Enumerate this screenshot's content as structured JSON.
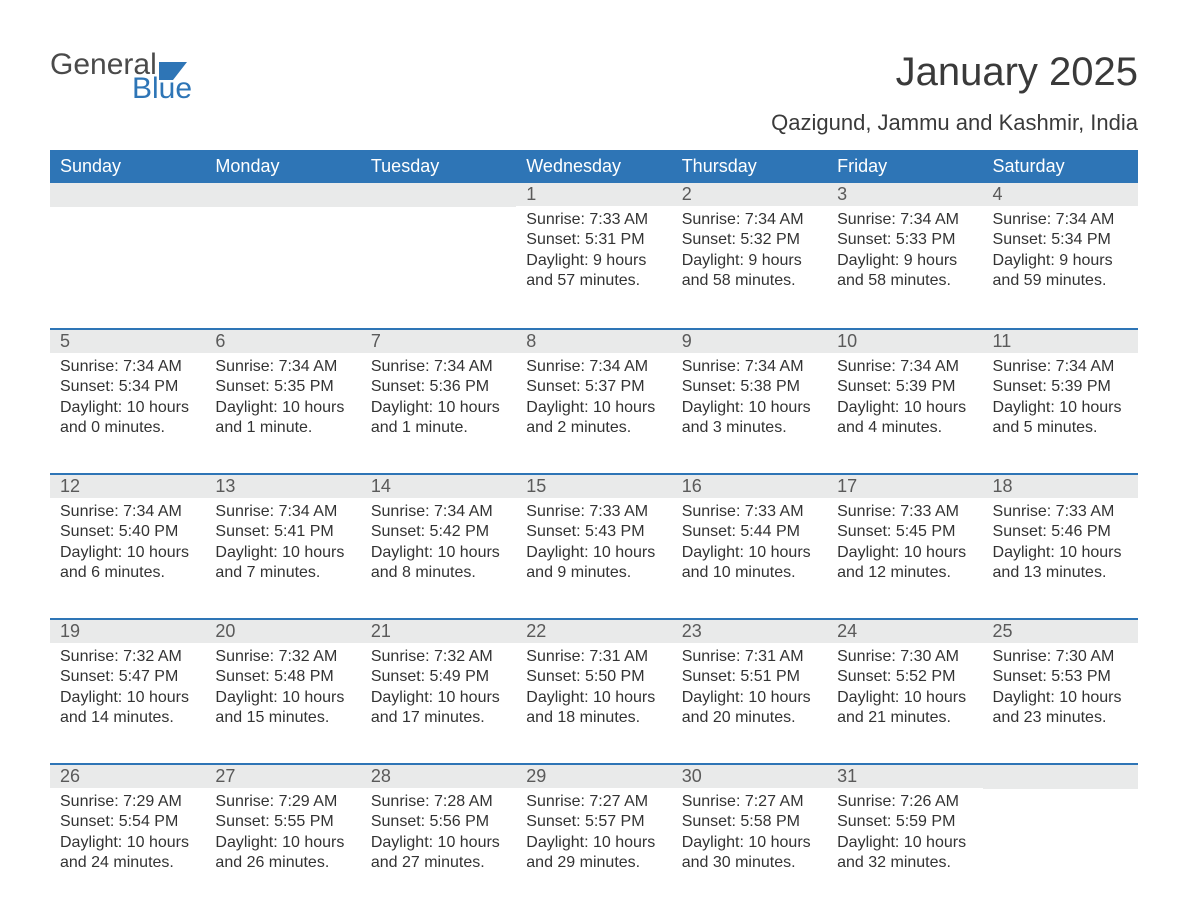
{
  "brand": {
    "word1": "General",
    "word2": "Blue"
  },
  "title": "January 2025",
  "subtitle": "Qazigund, Jammu and Kashmir, India",
  "colors": {
    "header_bg": "#2e75b6",
    "header_text": "#ffffff",
    "daynum_bg": "#e9eaea",
    "daynum_text": "#5a5a5a",
    "body_text": "#333333",
    "page_bg": "#ffffff",
    "logo_gray": "#4a4a4a",
    "logo_blue": "#2e75b6"
  },
  "typography": {
    "title_fontsize": 40,
    "subtitle_fontsize": 22,
    "header_fontsize": 18,
    "daynum_fontsize": 18,
    "body_fontsize": 16
  },
  "dayNames": [
    "Sunday",
    "Monday",
    "Tuesday",
    "Wednesday",
    "Thursday",
    "Friday",
    "Saturday"
  ],
  "weeks": [
    [
      {
        "num": "",
        "sunrise": "",
        "sunset": "",
        "daylight": ""
      },
      {
        "num": "",
        "sunrise": "",
        "sunset": "",
        "daylight": ""
      },
      {
        "num": "",
        "sunrise": "",
        "sunset": "",
        "daylight": ""
      },
      {
        "num": "1",
        "sunrise": "Sunrise: 7:33 AM",
        "sunset": "Sunset: 5:31 PM",
        "daylight": "Daylight: 9 hours and 57 minutes."
      },
      {
        "num": "2",
        "sunrise": "Sunrise: 7:34 AM",
        "sunset": "Sunset: 5:32 PM",
        "daylight": "Daylight: 9 hours and 58 minutes."
      },
      {
        "num": "3",
        "sunrise": "Sunrise: 7:34 AM",
        "sunset": "Sunset: 5:33 PM",
        "daylight": "Daylight: 9 hours and 58 minutes."
      },
      {
        "num": "4",
        "sunrise": "Sunrise: 7:34 AM",
        "sunset": "Sunset: 5:34 PM",
        "daylight": "Daylight: 9 hours and 59 minutes."
      }
    ],
    [
      {
        "num": "5",
        "sunrise": "Sunrise: 7:34 AM",
        "sunset": "Sunset: 5:34 PM",
        "daylight": "Daylight: 10 hours and 0 minutes."
      },
      {
        "num": "6",
        "sunrise": "Sunrise: 7:34 AM",
        "sunset": "Sunset: 5:35 PM",
        "daylight": "Daylight: 10 hours and 1 minute."
      },
      {
        "num": "7",
        "sunrise": "Sunrise: 7:34 AM",
        "sunset": "Sunset: 5:36 PM",
        "daylight": "Daylight: 10 hours and 1 minute."
      },
      {
        "num": "8",
        "sunrise": "Sunrise: 7:34 AM",
        "sunset": "Sunset: 5:37 PM",
        "daylight": "Daylight: 10 hours and 2 minutes."
      },
      {
        "num": "9",
        "sunrise": "Sunrise: 7:34 AM",
        "sunset": "Sunset: 5:38 PM",
        "daylight": "Daylight: 10 hours and 3 minutes."
      },
      {
        "num": "10",
        "sunrise": "Sunrise: 7:34 AM",
        "sunset": "Sunset: 5:39 PM",
        "daylight": "Daylight: 10 hours and 4 minutes."
      },
      {
        "num": "11",
        "sunrise": "Sunrise: 7:34 AM",
        "sunset": "Sunset: 5:39 PM",
        "daylight": "Daylight: 10 hours and 5 minutes."
      }
    ],
    [
      {
        "num": "12",
        "sunrise": "Sunrise: 7:34 AM",
        "sunset": "Sunset: 5:40 PM",
        "daylight": "Daylight: 10 hours and 6 minutes."
      },
      {
        "num": "13",
        "sunrise": "Sunrise: 7:34 AM",
        "sunset": "Sunset: 5:41 PM",
        "daylight": "Daylight: 10 hours and 7 minutes."
      },
      {
        "num": "14",
        "sunrise": "Sunrise: 7:34 AM",
        "sunset": "Sunset: 5:42 PM",
        "daylight": "Daylight: 10 hours and 8 minutes."
      },
      {
        "num": "15",
        "sunrise": "Sunrise: 7:33 AM",
        "sunset": "Sunset: 5:43 PM",
        "daylight": "Daylight: 10 hours and 9 minutes."
      },
      {
        "num": "16",
        "sunrise": "Sunrise: 7:33 AM",
        "sunset": "Sunset: 5:44 PM",
        "daylight": "Daylight: 10 hours and 10 minutes."
      },
      {
        "num": "17",
        "sunrise": "Sunrise: 7:33 AM",
        "sunset": "Sunset: 5:45 PM",
        "daylight": "Daylight: 10 hours and 12 minutes."
      },
      {
        "num": "18",
        "sunrise": "Sunrise: 7:33 AM",
        "sunset": "Sunset: 5:46 PM",
        "daylight": "Daylight: 10 hours and 13 minutes."
      }
    ],
    [
      {
        "num": "19",
        "sunrise": "Sunrise: 7:32 AM",
        "sunset": "Sunset: 5:47 PM",
        "daylight": "Daylight: 10 hours and 14 minutes."
      },
      {
        "num": "20",
        "sunrise": "Sunrise: 7:32 AM",
        "sunset": "Sunset: 5:48 PM",
        "daylight": "Daylight: 10 hours and 15 minutes."
      },
      {
        "num": "21",
        "sunrise": "Sunrise: 7:32 AM",
        "sunset": "Sunset: 5:49 PM",
        "daylight": "Daylight: 10 hours and 17 minutes."
      },
      {
        "num": "22",
        "sunrise": "Sunrise: 7:31 AM",
        "sunset": "Sunset: 5:50 PM",
        "daylight": "Daylight: 10 hours and 18 minutes."
      },
      {
        "num": "23",
        "sunrise": "Sunrise: 7:31 AM",
        "sunset": "Sunset: 5:51 PM",
        "daylight": "Daylight: 10 hours and 20 minutes."
      },
      {
        "num": "24",
        "sunrise": "Sunrise: 7:30 AM",
        "sunset": "Sunset: 5:52 PM",
        "daylight": "Daylight: 10 hours and 21 minutes."
      },
      {
        "num": "25",
        "sunrise": "Sunrise: 7:30 AM",
        "sunset": "Sunset: 5:53 PM",
        "daylight": "Daylight: 10 hours and 23 minutes."
      }
    ],
    [
      {
        "num": "26",
        "sunrise": "Sunrise: 7:29 AM",
        "sunset": "Sunset: 5:54 PM",
        "daylight": "Daylight: 10 hours and 24 minutes."
      },
      {
        "num": "27",
        "sunrise": "Sunrise: 7:29 AM",
        "sunset": "Sunset: 5:55 PM",
        "daylight": "Daylight: 10 hours and 26 minutes."
      },
      {
        "num": "28",
        "sunrise": "Sunrise: 7:28 AM",
        "sunset": "Sunset: 5:56 PM",
        "daylight": "Daylight: 10 hours and 27 minutes."
      },
      {
        "num": "29",
        "sunrise": "Sunrise: 7:27 AM",
        "sunset": "Sunset: 5:57 PM",
        "daylight": "Daylight: 10 hours and 29 minutes."
      },
      {
        "num": "30",
        "sunrise": "Sunrise: 7:27 AM",
        "sunset": "Sunset: 5:58 PM",
        "daylight": "Daylight: 10 hours and 30 minutes."
      },
      {
        "num": "31",
        "sunrise": "Sunrise: 7:26 AM",
        "sunset": "Sunset: 5:59 PM",
        "daylight": "Daylight: 10 hours and 32 minutes."
      },
      {
        "num": "",
        "sunrise": "",
        "sunset": "",
        "daylight": ""
      }
    ]
  ]
}
